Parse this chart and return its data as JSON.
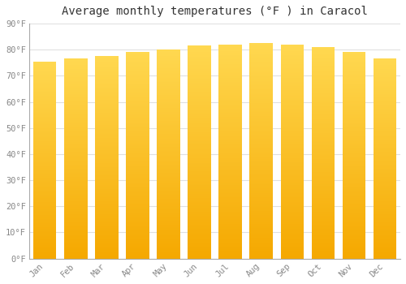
{
  "title": "Average monthly temperatures (°F ) in Caracol",
  "months": [
    "Jan",
    "Feb",
    "Mar",
    "Apr",
    "May",
    "Jun",
    "Jul",
    "Aug",
    "Sep",
    "Oct",
    "Nov",
    "Dec"
  ],
  "values": [
    75.5,
    76.5,
    77.5,
    79.0,
    80.0,
    81.5,
    82.0,
    82.5,
    82.0,
    81.0,
    79.0,
    76.5
  ],
  "bar_color_bottom": "#F5A800",
  "bar_color_top": "#FFD040",
  "background_color": "#FFFFFF",
  "grid_color": "#E0E0E0",
  "ylim": [
    0,
    90
  ],
  "yticks": [
    0,
    10,
    20,
    30,
    40,
    50,
    60,
    70,
    80,
    90
  ],
  "ytick_labels": [
    "0°F",
    "10°F",
    "20°F",
    "30°F",
    "40°F",
    "50°F",
    "60°F",
    "70°F",
    "80°F",
    "90°F"
  ],
  "title_fontsize": 10,
  "tick_fontsize": 7.5,
  "bar_width": 0.75
}
